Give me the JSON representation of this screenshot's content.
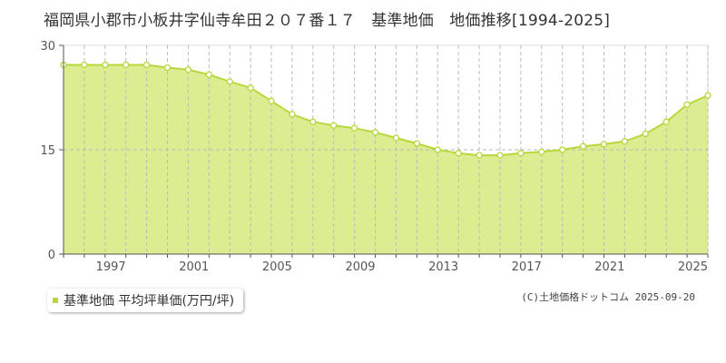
{
  "colors": {
    "fill": "#dcec91",
    "line": "#b6d83c",
    "marker_fill": "#ffffff",
    "axis": "#555555",
    "grid": "#bbbbbb"
  },
  "chart_data": {
    "type": "area",
    "title": "福岡県小郡市小板井字仙寺牟田２０７番１７　基準地価　地価推移[1994-2025]",
    "xlim": [
      1994,
      2025
    ],
    "ylim": [
      0,
      30
    ],
    "yticks": [
      "0",
      "15",
      "30"
    ],
    "xticks": [
      "1997",
      "2001",
      "2005",
      "2009",
      "2013",
      "2017",
      "2021",
      "2025"
    ],
    "grid": true,
    "series": [
      {
        "name": "基準地価 平均坪単価(万円/坪)",
        "x": [
          1994,
          1995,
          1996,
          1997,
          1998,
          1999,
          2000,
          2001,
          2002,
          2003,
          2004,
          2005,
          2006,
          2007,
          2008,
          2009,
          2010,
          2011,
          2012,
          2013,
          2014,
          2015,
          2016,
          2017,
          2018,
          2019,
          2020,
          2021,
          2022,
          2023,
          2024,
          2025
        ],
        "values": [
          27.2,
          27.2,
          27.2,
          27.2,
          27.2,
          26.8,
          26.5,
          25.8,
          24.8,
          23.9,
          22.0,
          20.1,
          19.0,
          18.5,
          18.1,
          17.5,
          16.7,
          15.9,
          15.0,
          14.5,
          14.2,
          14.2,
          14.5,
          14.7,
          15.0,
          15.5,
          15.8,
          16.2,
          17.3,
          19.0,
          21.5,
          22.8
        ]
      }
    ]
  },
  "legend": {
    "label": "基準地価 平均坪単価(万円/坪)"
  },
  "credit": "(C)土地価格ドットコム 2025-09-20"
}
